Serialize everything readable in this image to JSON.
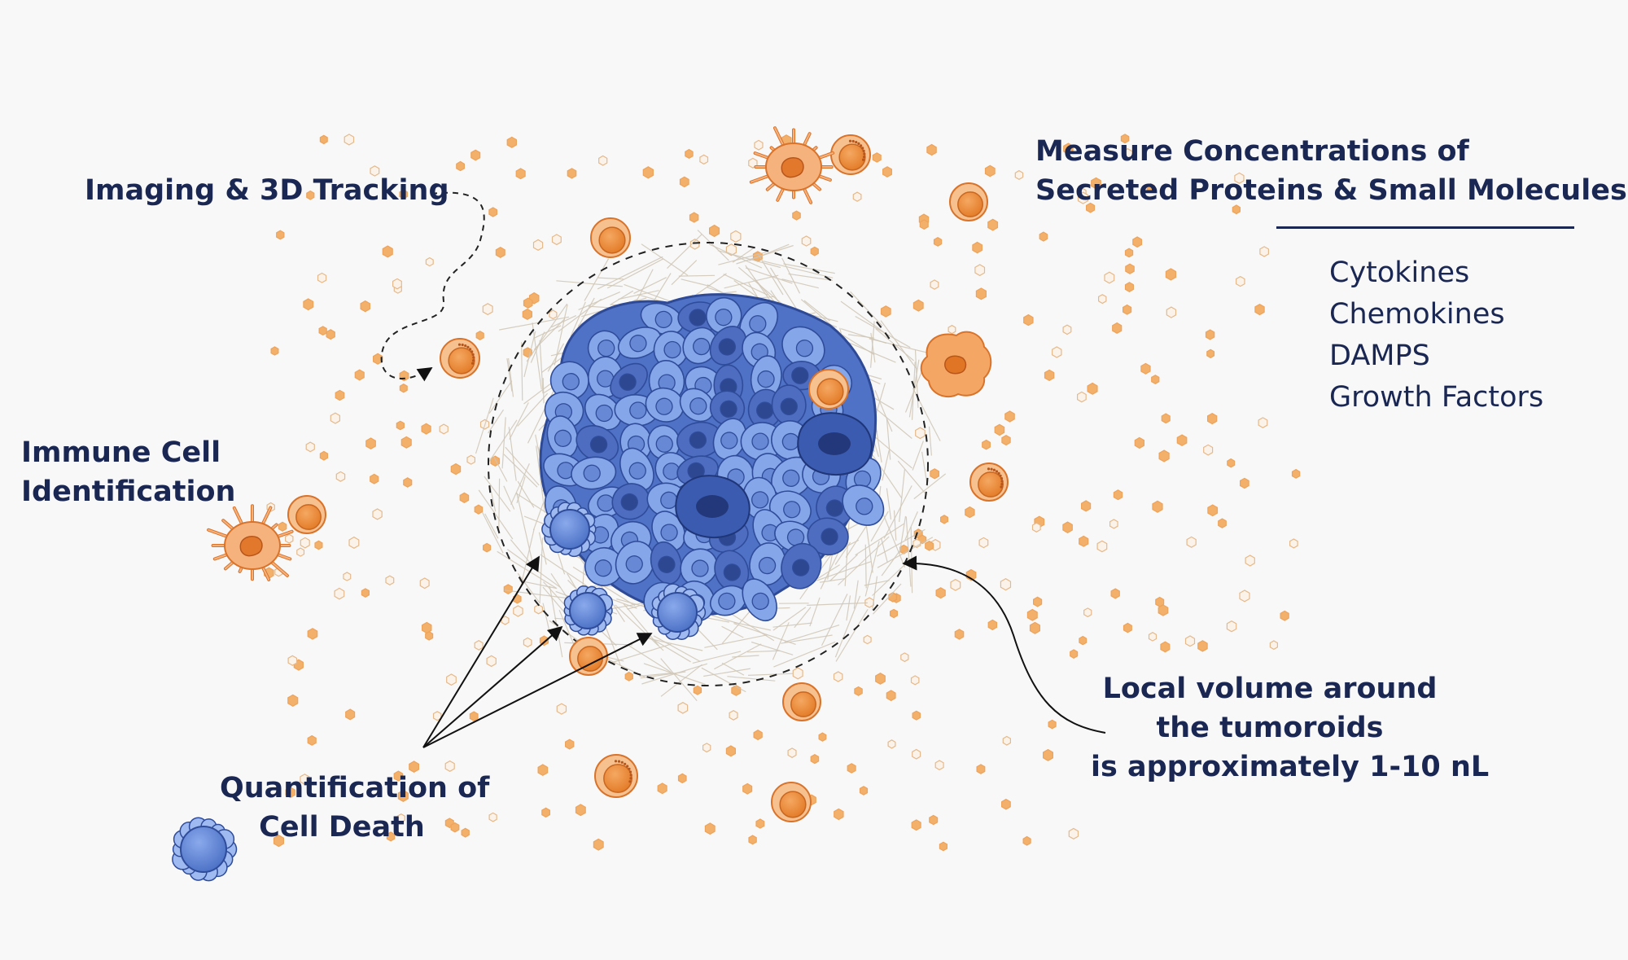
{
  "labels": {
    "imaging": "Imaging & 3D Tracking",
    "immune": {
      "line1": "Immune Cell",
      "line2": "Identification"
    },
    "measure": {
      "line1": "Measure Concentrations of",
      "line2": "Secreted Proteins & Small Molecules"
    },
    "secreted_types": [
      "Cytokines",
      "Chemokines",
      "DAMPS",
      "Growth Factors"
    ],
    "cell_death": {
      "line1": "Quantification of",
      "line2": "Cell Death"
    },
    "volume": {
      "line1": "Local volume around",
      "line2": "the tumoroids",
      "line3": "is approximately 1-10 nL"
    }
  },
  "colors": {
    "text": "#1a2753",
    "tumor_cell": "#6b91dc",
    "tumor_cell_dark": "#3b5bb0",
    "immune_cell": "#ef8c3a",
    "immune_cell_light": "#f7b27a",
    "molecule": "#f3b06a",
    "fibers": "#cfc6b6",
    "background": "#f8f8f8"
  },
  "icons": [
    "tumoroid",
    "t-cell",
    "dendritic-cell",
    "macrophage",
    "dying-cell",
    "secreted-molecule"
  ]
}
